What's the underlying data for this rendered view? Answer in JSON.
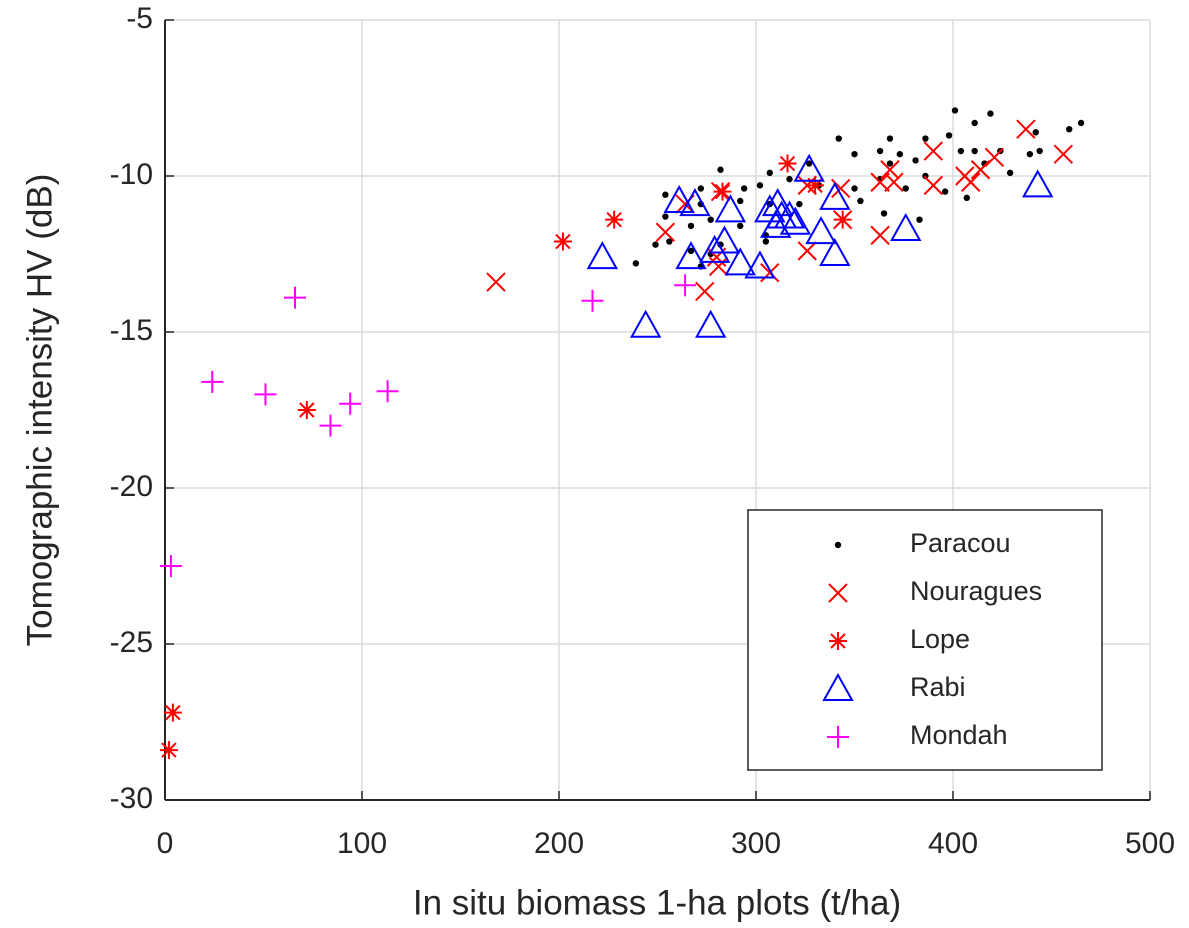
{
  "chart_data": {
    "type": "scatter",
    "x_label": "In situ biomass 1-ha plots (t/ha)",
    "y_label": "Tomographic intensity HV (dB)",
    "xlim": [
      0,
      500
    ],
    "xticks": [
      0,
      100,
      200,
      300,
      400,
      500
    ],
    "ylim": [
      -30,
      -5
    ],
    "yticks": [
      -30,
      -25,
      -20,
      -15,
      -10,
      -5
    ],
    "grid": true,
    "legend": "lower right",
    "series": [
      {
        "name": "Paracou",
        "color": "#000000",
        "marker": "dot",
        "x": [
          401,
          419,
          411,
          465,
          459,
          442,
          342,
          368,
          386,
          398,
          444,
          439,
          424,
          411,
          404,
          363,
          373,
          381,
          350,
          368,
          416,
          429,
          386,
          363,
          327,
          307,
          282,
          302,
          317,
          332,
          350,
          376,
          396,
          407,
          294,
          272,
          254,
          272,
          292,
          307,
          353,
          365,
          322,
          254,
          277,
          292,
          267,
          305,
          282,
          305,
          249,
          267,
          277,
          239,
          256,
          272,
          383
        ],
        "y": [
          -7.9,
          -8.0,
          -8.3,
          -8.3,
          -8.5,
          -8.6,
          -8.8,
          -8.8,
          -8.8,
          -8.7,
          -9.2,
          -9.3,
          -9.2,
          -9.2,
          -9.2,
          -9.2,
          -9.3,
          -9.5,
          -9.3,
          -9.6,
          -9.6,
          -9.9,
          -10.0,
          -10.1,
          -9.6,
          -9.9,
          -9.8,
          -10.3,
          -10.1,
          -10.3,
          -10.4,
          -10.4,
          -10.5,
          -10.7,
          -10.4,
          -10.4,
          -10.6,
          -10.9,
          -10.8,
          -10.9,
          -10.8,
          -11.2,
          -10.9,
          -11.3,
          -11.4,
          -11.6,
          -11.6,
          -11.9,
          -12.2,
          -12.1,
          -12.2,
          -12.4,
          -12.5,
          -12.8,
          -12.1,
          -12.9,
          -11.4
        ]
      },
      {
        "name": "Nouragues",
        "color": "#ff0000",
        "marker": "x",
        "x": [
          437,
          456,
          390,
          421,
          414,
          406,
          409,
          390,
          368,
          363,
          370,
          343,
          326,
          282,
          363,
          344,
          326,
          307,
          254,
          264,
          281,
          274,
          168,
          280
        ],
        "y": [
          -8.5,
          -9.3,
          -9.2,
          -9.4,
          -9.8,
          -10.0,
          -10.2,
          -10.3,
          -9.8,
          -10.2,
          -10.2,
          -10.4,
          -10.3,
          -10.5,
          -11.9,
          -11.4,
          -12.4,
          -13.1,
          -11.8,
          -10.9,
          -12.9,
          -13.7,
          -13.4,
          -12.6
        ]
      },
      {
        "name": "Lope",
        "color": "#ff0000",
        "marker": "asterisk",
        "x": [
          2,
          4,
          72,
          202,
          228,
          283,
          316,
          330,
          344
        ],
        "y": [
          -28.4,
          -27.2,
          -17.5,
          -12.1,
          -11.4,
          -10.5,
          -9.6,
          -10.3,
          -11.4
        ]
      },
      {
        "name": "Rabi",
        "color": "#0000ff",
        "marker": "triangle",
        "x": [
          443,
          376,
          340,
          340,
          327,
          333,
          307,
          311,
          313,
          317,
          320,
          310,
          302,
          292,
          287,
          284,
          279,
          267,
          269,
          261,
          222,
          244,
          277
        ],
        "y": [
          -10.3,
          -11.7,
          -10.7,
          -12.5,
          -9.8,
          -11.8,
          -11.1,
          -10.9,
          -11.3,
          -11.3,
          -11.5,
          -11.6,
          -12.9,
          -12.8,
          -11.1,
          -12.1,
          -12.4,
          -12.6,
          -10.9,
          -10.8,
          -12.6,
          -14.8,
          -14.8
        ]
      },
      {
        "name": "Mondah",
        "color": "#ff00ff",
        "marker": "plus",
        "x": [
          3,
          24,
          51,
          66,
          84,
          94,
          113,
          217,
          264
        ],
        "y": [
          -22.5,
          -16.6,
          -17.0,
          -13.9,
          -18.0,
          -17.3,
          -16.9,
          -14.0,
          -13.5
        ]
      }
    ]
  }
}
